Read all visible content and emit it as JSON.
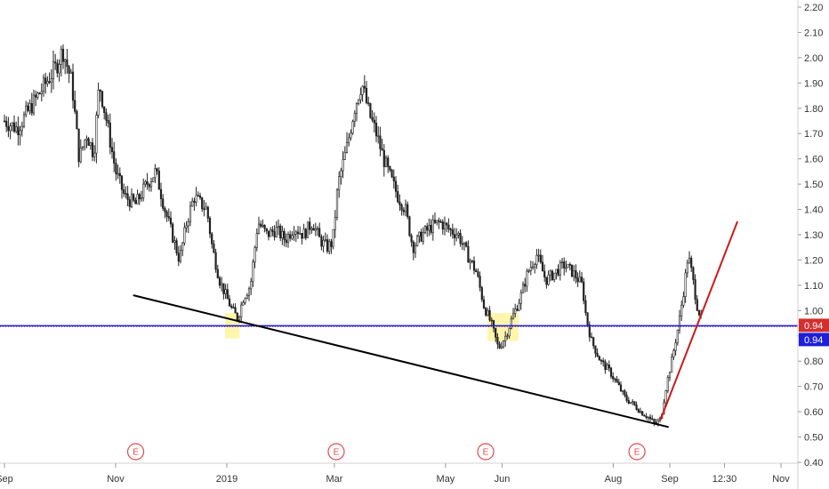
{
  "chart_data": {
    "type": "candlestick",
    "y_axis": {
      "position": "right",
      "range": [
        0.4,
        2.2
      ],
      "ticks": [
        "2.20",
        "2.10",
        "2.00",
        "1.90",
        "1.80",
        "1.70",
        "1.60",
        "1.50",
        "1.40",
        "1.30",
        "1.20",
        "1.10",
        "1.00",
        "0.90",
        "0.80",
        "0.70",
        "0.60",
        "0.50",
        "0.40"
      ]
    },
    "x_axis": {
      "range": [
        "2018-09-01",
        "2019-11-20"
      ],
      "ticks": [
        {
          "label": "Sep",
          "date": "2018-09-01"
        },
        {
          "label": "Nov",
          "date": "2018-11-01"
        },
        {
          "label": "2019",
          "date": "2019-01-01"
        },
        {
          "label": "Mar",
          "date": "2019-03-01"
        },
        {
          "label": "May",
          "date": "2019-05-01"
        },
        {
          "label": "Jun",
          "date": "2019-06-01"
        },
        {
          "label": "Aug",
          "date": "2019-08-01"
        },
        {
          "label": "Sep",
          "date": "2019-09-01"
        },
        {
          "label": "12:30",
          "date": "2019-10-01"
        },
        {
          "label": "Nov",
          "date": "2019-11-01"
        }
      ]
    },
    "price_path": [
      [
        "2018-09-01",
        1.75
      ],
      [
        "2018-09-08",
        1.72
      ],
      [
        "2018-09-15",
        1.8
      ],
      [
        "2018-09-22",
        1.88
      ],
      [
        "2018-09-29",
        1.96
      ],
      [
        "2018-10-03",
        2.03
      ],
      [
        "2018-10-08",
        1.9
      ],
      [
        "2018-10-12",
        1.6
      ],
      [
        "2018-10-16",
        1.7
      ],
      [
        "2018-10-20",
        1.62
      ],
      [
        "2018-10-23",
        1.9
      ],
      [
        "2018-10-27",
        1.75
      ],
      [
        "2018-11-01",
        1.55
      ],
      [
        "2018-11-06",
        1.45
      ],
      [
        "2018-11-12",
        1.42
      ],
      [
        "2018-11-18",
        1.5
      ],
      [
        "2018-11-23",
        1.55
      ],
      [
        "2018-11-28",
        1.4
      ],
      [
        "2018-12-02",
        1.3
      ],
      [
        "2018-12-06",
        1.2
      ],
      [
        "2018-12-10",
        1.35
      ],
      [
        "2018-12-14",
        1.45
      ],
      [
        "2018-12-18",
        1.42
      ],
      [
        "2018-12-21",
        1.4
      ],
      [
        "2018-12-24",
        1.25
      ],
      [
        "2018-12-28",
        1.12
      ],
      [
        "2019-01-01",
        1.05
      ],
      [
        "2019-01-04",
        1.0
      ],
      [
        "2019-01-07",
        0.97
      ],
      [
        "2019-01-10",
        1.05
      ],
      [
        "2019-01-14",
        1.1
      ],
      [
        "2019-01-18",
        1.35
      ],
      [
        "2019-01-23",
        1.3
      ],
      [
        "2019-01-28",
        1.32
      ],
      [
        "2019-02-02",
        1.28
      ],
      [
        "2019-02-07",
        1.33
      ],
      [
        "2019-02-12",
        1.3
      ],
      [
        "2019-02-17",
        1.35
      ],
      [
        "2019-02-21",
        1.28
      ],
      [
        "2019-02-25",
        1.25
      ],
      [
        "2019-02-28",
        1.27
      ],
      [
        "2019-03-03",
        1.5
      ],
      [
        "2019-03-08",
        1.65
      ],
      [
        "2019-03-12",
        1.8
      ],
      [
        "2019-03-16",
        1.9
      ],
      [
        "2019-03-20",
        1.78
      ],
      [
        "2019-03-24",
        1.7
      ],
      [
        "2019-03-28",
        1.6
      ],
      [
        "2019-04-01",
        1.52
      ],
      [
        "2019-04-05",
        1.45
      ],
      [
        "2019-04-09",
        1.4
      ],
      [
        "2019-04-13",
        1.25
      ],
      [
        "2019-04-18",
        1.3
      ],
      [
        "2019-04-23",
        1.33
      ],
      [
        "2019-04-28",
        1.35
      ],
      [
        "2019-05-03",
        1.32
      ],
      [
        "2019-05-08",
        1.3
      ],
      [
        "2019-05-13",
        1.22
      ],
      [
        "2019-05-18",
        1.15
      ],
      [
        "2019-05-22",
        1.02
      ],
      [
        "2019-05-26",
        0.95
      ],
      [
        "2019-05-30",
        0.85
      ],
      [
        "2019-06-03",
        0.9
      ],
      [
        "2019-06-07",
        0.98
      ],
      [
        "2019-06-11",
        1.05
      ],
      [
        "2019-06-15",
        1.15
      ],
      [
        "2019-06-20",
        1.22
      ],
      [
        "2019-06-25",
        1.12
      ],
      [
        "2019-06-30",
        1.15
      ],
      [
        "2019-07-05",
        1.18
      ],
      [
        "2019-07-10",
        1.15
      ],
      [
        "2019-07-15",
        1.1
      ],
      [
        "2019-07-17",
        0.98
      ],
      [
        "2019-07-20",
        0.88
      ],
      [
        "2019-07-25",
        0.8
      ],
      [
        "2019-07-30",
        0.76
      ],
      [
        "2019-08-04",
        0.7
      ],
      [
        "2019-08-08",
        0.65
      ],
      [
        "2019-08-12",
        0.63
      ],
      [
        "2019-08-16",
        0.6
      ],
      [
        "2019-08-20",
        0.58
      ],
      [
        "2019-08-24",
        0.55
      ],
      [
        "2019-08-27",
        0.57
      ],
      [
        "2019-08-30",
        0.7
      ],
      [
        "2019-09-02",
        0.8
      ],
      [
        "2019-09-06",
        0.95
      ],
      [
        "2019-09-09",
        1.1
      ],
      [
        "2019-09-11",
        1.22
      ],
      [
        "2019-09-13",
        1.15
      ],
      [
        "2019-09-16",
        1.02
      ],
      [
        "2019-09-19",
        0.95
      ]
    ],
    "horizontal_line": {
      "value": 0.94,
      "color": "#1f1fd9"
    },
    "price_labels": [
      {
        "value": "0.94",
        "color": "#d32f2f"
      },
      {
        "value": "0.94",
        "color": "#1f1fd9"
      }
    ],
    "trendlines": [
      {
        "color": "#000000",
        "from": [
          "2018-11-11",
          1.06
        ],
        "to": [
          "2019-08-31",
          0.54
        ]
      },
      {
        "color": "#cc1a1a",
        "from": [
          "2019-08-27",
          0.57
        ],
        "to": [
          "2019-10-08",
          1.35
        ]
      }
    ],
    "highlight_zones": [
      {
        "from": "2018-12-31",
        "to": "2019-01-08",
        "low": 0.89,
        "high": 0.99
      },
      {
        "from": "2019-05-24",
        "to": "2019-06-10",
        "low": 0.88,
        "high": 0.99
      }
    ],
    "earnings_markers": [
      {
        "label": "E",
        "date": "2018-11-12"
      },
      {
        "label": "E",
        "date": "2019-03-02"
      },
      {
        "label": "E",
        "date": "2019-05-23"
      },
      {
        "label": "E",
        "date": "2019-08-14"
      }
    ],
    "colors": {
      "candle": "#222222",
      "axis_text": "#333333",
      "earnings": "#e04a4a",
      "highlight": "#fff59d"
    }
  }
}
